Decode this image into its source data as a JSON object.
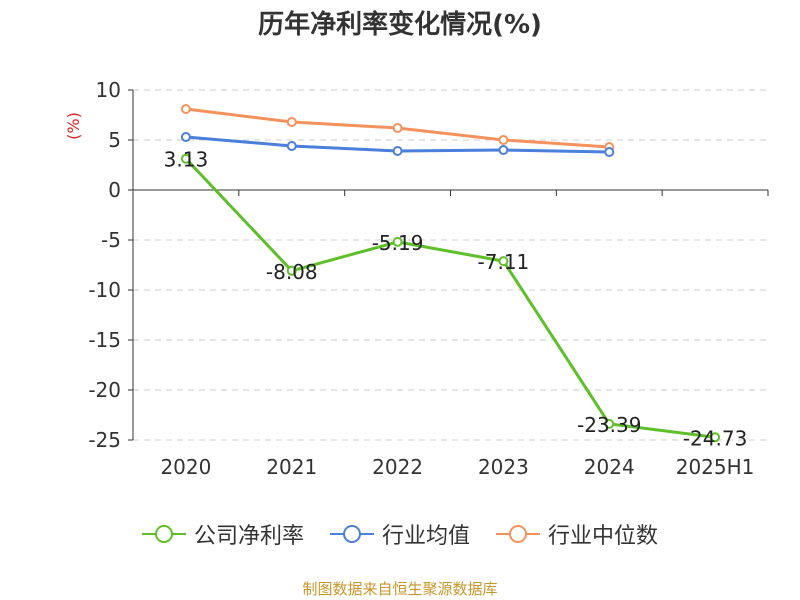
{
  "chart_data": {
    "type": "line",
    "title": "历年净利率变化情况(%)",
    "ylabel": "(%)",
    "xlabel": "",
    "categories": [
      "2020",
      "2021",
      "2022",
      "2023",
      "2024",
      "2025H1"
    ],
    "ylim": [
      -25,
      10
    ],
    "yticks": [
      10,
      5,
      0,
      -5,
      -10,
      -15,
      -20,
      -25
    ],
    "ytick_labels": [
      "10",
      "5",
      "0",
      "-5",
      "-10",
      "-15",
      "-20",
      "-25"
    ],
    "grid": true,
    "legend_position": "bottom",
    "series": [
      {
        "name": "公司净利率",
        "color": "#5fbf2a",
        "values": [
          3.13,
          -8.08,
          -5.19,
          -7.11,
          -23.39,
          -24.73
        ],
        "data_labels": [
          "3.13",
          "-8.08",
          "-5.19",
          "-7.11",
          "-23.39",
          "-24.73"
        ]
      },
      {
        "name": "行业均值",
        "color": "#4a7fdb",
        "values": [
          5.3,
          4.4,
          3.9,
          4.0,
          3.8,
          null
        ]
      },
      {
        "name": "行业中位数",
        "color": "#f5925b",
        "values": [
          8.1,
          6.8,
          6.2,
          5.0,
          4.3,
          null
        ]
      }
    ]
  },
  "source_text": "制图数据来自恒生聚源数据库",
  "colors": {
    "title": "#333333",
    "ylabel": "#e02020",
    "axis": "#333333",
    "grid": "#cccccc",
    "source": "#c8962a"
  }
}
